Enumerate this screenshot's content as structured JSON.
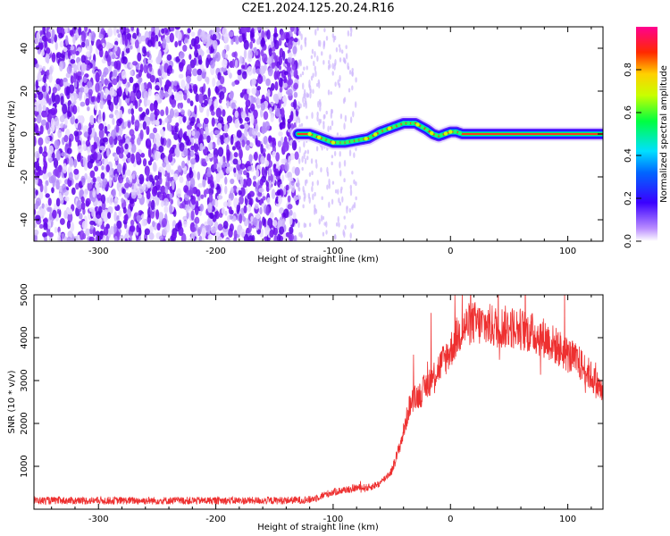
{
  "title": "C2E1.2024.125.20.24.R16",
  "colors": {
    "speckle": "#6a00f0",
    "snr_line": "#ee3030",
    "frame": "#000000"
  },
  "colorbar": {
    "label": "Normalized spectral amplitude",
    "ticks": [
      "0.0",
      "0.2",
      "0.4",
      "0.6",
      "0.8"
    ],
    "range": [
      0,
      1
    ]
  },
  "chart_data": [
    {
      "type": "heatmap",
      "title": "",
      "xlabel": "Height of straight line (km)",
      "ylabel": "Frequency (Hz)",
      "xlim": [
        -355,
        130
      ],
      "ylim": [
        -50,
        50
      ],
      "x_ticks": [
        -300,
        -200,
        -100,
        0,
        100
      ],
      "x_tick_labels": [
        "-300",
        "-200",
        "-100",
        "0",
        "100"
      ],
      "y_ticks": [
        -40,
        -20,
        0,
        20,
        40
      ],
      "y_tick_labels": [
        "-40",
        "-20",
        "0",
        "20",
        "40"
      ],
      "noise_region_x": [
        -355,
        -130
      ],
      "sparse_noise_x": [
        -130,
        -80
      ],
      "signal_trace": {
        "x": [
          -130,
          -120,
          -110,
          -100,
          -90,
          -80,
          -70,
          -60,
          -50,
          -40,
          -30,
          -20,
          -15,
          -10,
          -5,
          0,
          5,
          10,
          130
        ],
        "y": [
          0,
          0,
          -2,
          -4,
          -4,
          -3,
          -2,
          1,
          3,
          5,
          5,
          2,
          0,
          -1,
          0,
          1,
          1,
          0,
          0
        ]
      }
    },
    {
      "type": "line",
      "title": "",
      "xlabel": "Height of straight line (km)",
      "ylabel": "SNR (10 * v/v)",
      "xlim": [
        -355,
        130
      ],
      "ylim": [
        0,
        5000
      ],
      "x_ticks": [
        -300,
        -200,
        -100,
        0,
        100
      ],
      "x_tick_labels": [
        "-300",
        "-200",
        "-100",
        "0",
        "100"
      ],
      "y_ticks": [
        1000,
        2000,
        3000,
        4000,
        5000
      ],
      "y_tick_labels": [
        "1000",
        "2000",
        "3000",
        "4000",
        "5000"
      ],
      "series": [
        {
          "x": [
            -355,
            -300,
            -250,
            -200,
            -150,
            -120,
            -100,
            -90,
            -80,
            -70,
            -60,
            -50,
            -45,
            -40,
            -35,
            -30,
            -25,
            -20,
            -15,
            -10,
            -5,
            0,
            5,
            10,
            15,
            20,
            25,
            30,
            40,
            50,
            60,
            70,
            80,
            90,
            100,
            110,
            120,
            130
          ],
          "values": [
            200,
            200,
            200,
            200,
            200,
            220,
            400,
            450,
            500,
            500,
            600,
            900,
            1300,
            1800,
            2400,
            2600,
            2700,
            2900,
            3100,
            3300,
            3500,
            3700,
            4000,
            4200,
            4300,
            4350,
            4300,
            4300,
            4250,
            4250,
            4200,
            4100,
            4000,
            3800,
            3600,
            3400,
            3100,
            2700
          ]
        }
      ]
    }
  ]
}
